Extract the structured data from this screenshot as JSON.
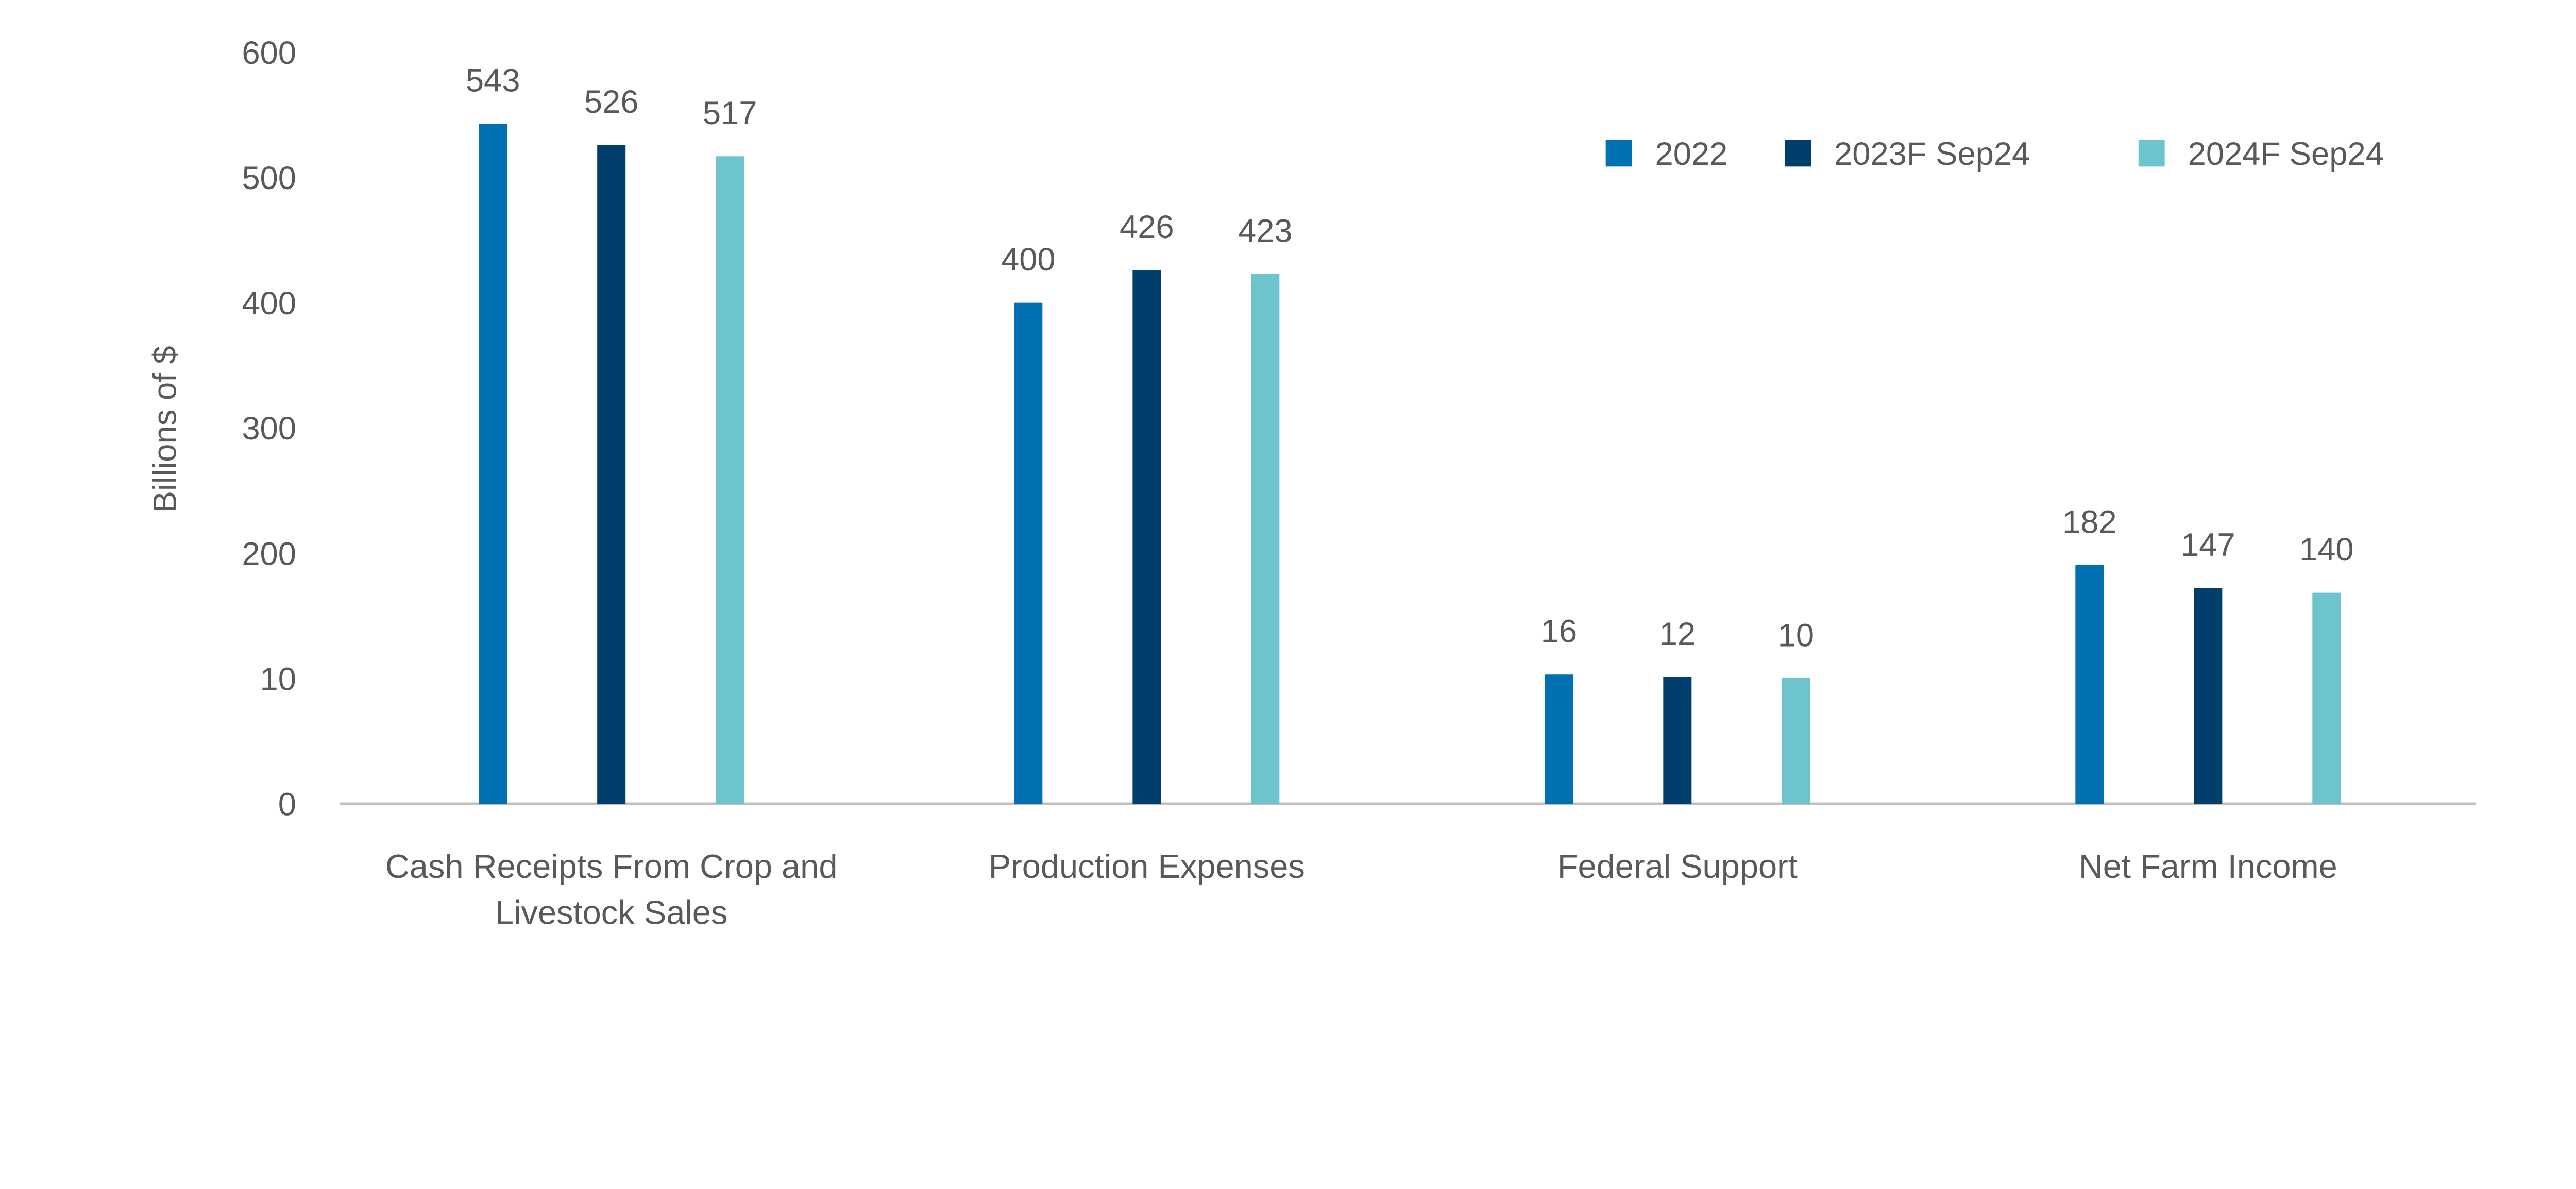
{
  "chart_data": {
    "type": "bar",
    "title": "",
    "xlabel": "",
    "ylabel": "Billions of $",
    "y_ticks": [
      "0",
      "10",
      "200",
      "300",
      "400",
      "500",
      "600"
    ],
    "y_tick_values": [
      0,
      10,
      200,
      300,
      400,
      500,
      600
    ],
    "ylim": [
      0,
      600
    ],
    "grid": false,
    "legend_position": "top-right",
    "categories": [
      [
        "Cash Receipts From Crop and",
        "Livestock Sales"
      ],
      [
        "Production Expenses"
      ],
      [
        "Federal Support"
      ],
      [
        "Net Farm Income"
      ]
    ],
    "series": [
      {
        "name": "2022",
        "color": "#0070B2",
        "values": [
          543,
          400,
          16,
          182
        ]
      },
      {
        "name": "2023F Sep24",
        "color": "#003F6B",
        "values": [
          526,
          426,
          12,
          147
        ]
      },
      {
        "name": "2024F Sep24",
        "color": "#6CC4CC",
        "values": [
          517,
          423,
          10,
          140
        ]
      }
    ],
    "axis_color": "#BFBFBF",
    "text_color": "#595959"
  }
}
